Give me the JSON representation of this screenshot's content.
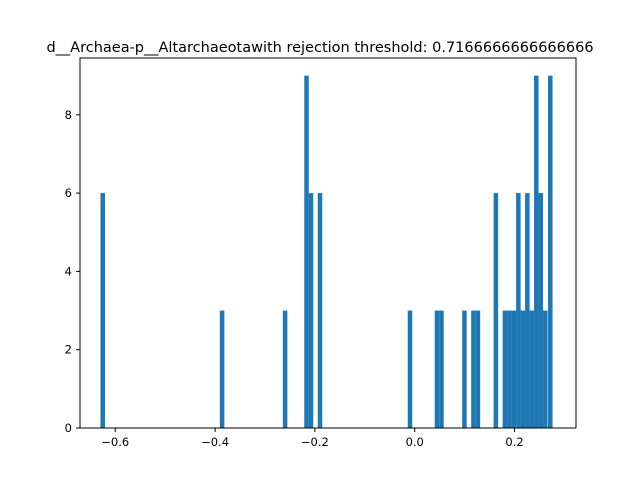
{
  "chart_data": {
    "type": "bar",
    "title": "d__Archaea-p__Altarchaeotawith rejection threshold: 0.7166666666666666",
    "xlabel": "",
    "ylabel": "",
    "xlim": [
      -0.6706,
      0.3231
    ],
    "ylim": [
      0,
      9.45
    ],
    "xticks": [
      -0.6,
      -0.4,
      -0.2,
      0.0,
      0.2
    ],
    "xtick_labels": [
      "−0.6",
      "−0.4",
      "−0.2",
      "0.0",
      "0.2"
    ],
    "yticks": [
      0,
      2,
      4,
      6,
      8
    ],
    "ytick_labels": [
      "0",
      "2",
      "4",
      "6",
      "8"
    ],
    "bin_width": 0.00903,
    "grid": false,
    "bar_color": "#1f77b4",
    "bars": [
      {
        "x": -0.6251,
        "value": 6
      },
      {
        "x": -0.3859,
        "value": 3
      },
      {
        "x": -0.2597,
        "value": 3
      },
      {
        "x": -0.2168,
        "value": 9
      },
      {
        "x": -0.2078,
        "value": 6
      },
      {
        "x": -0.1898,
        "value": 6
      },
      {
        "x": -0.0095,
        "value": 3
      },
      {
        "x": 0.0446,
        "value": 3
      },
      {
        "x": 0.0536,
        "value": 3
      },
      {
        "x": 0.0996,
        "value": 3
      },
      {
        "x": 0.1176,
        "value": 3
      },
      {
        "x": 0.1266,
        "value": 3
      },
      {
        "x": 0.1626,
        "value": 6
      },
      {
        "x": 0.1806,
        "value": 3
      },
      {
        "x": 0.1896,
        "value": 3
      },
      {
        "x": 0.1986,
        "value": 3
      },
      {
        "x": 0.2076,
        "value": 6
      },
      {
        "x": 0.2166,
        "value": 3
      },
      {
        "x": 0.2256,
        "value": 6
      },
      {
        "x": 0.2346,
        "value": 3
      },
      {
        "x": 0.2436,
        "value": 9
      },
      {
        "x": 0.2526,
        "value": 6
      },
      {
        "x": 0.2616,
        "value": 3
      },
      {
        "x": 0.2716,
        "value": 9
      }
    ]
  }
}
